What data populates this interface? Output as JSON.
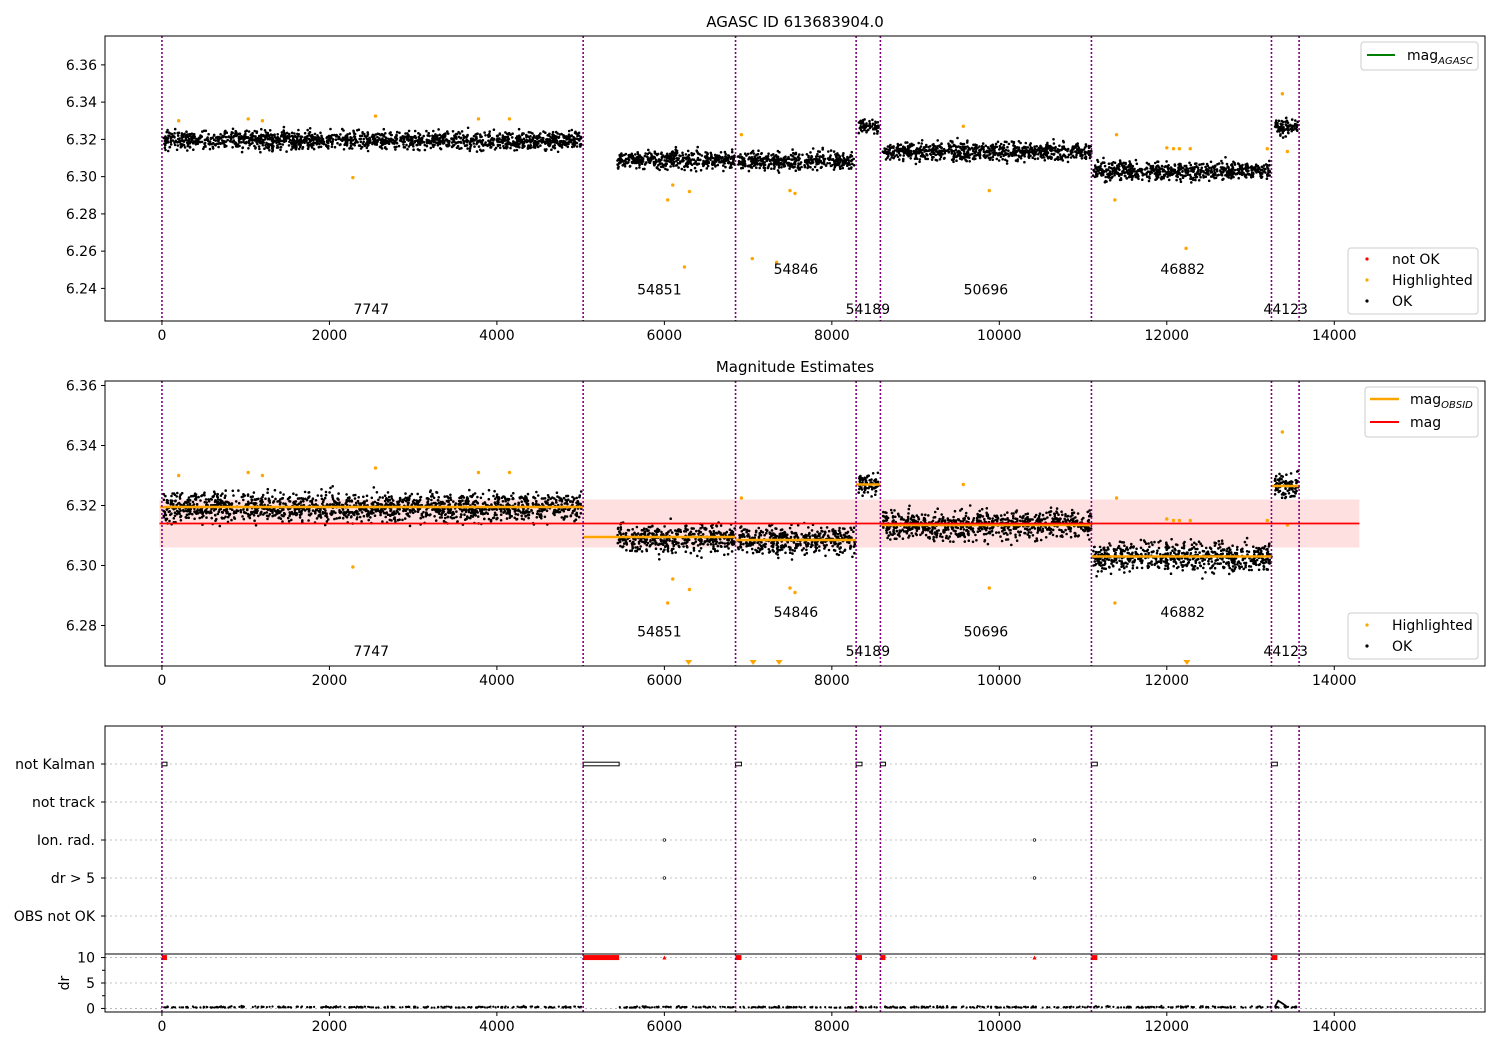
{
  "chart_data": [
    {
      "type": "scatter",
      "title": "AGASC ID 613683904.0",
      "xlim": [
        -680,
        15800
      ],
      "ylim": [
        6.2225,
        6.3755
      ],
      "xticks": [
        0,
        2000,
        4000,
        6000,
        8000,
        10000,
        12000,
        14000
      ],
      "xtick_labels": [
        "0",
        "2000",
        "4000",
        "6000",
        "8000",
        "10000",
        "12000",
        "14000"
      ],
      "yticks": [
        6.24,
        6.26,
        6.28,
        6.3,
        6.32,
        6.34,
        6.36
      ],
      "ytick_labels": [
        "6.24",
        "6.26",
        "6.28",
        "6.30",
        "6.32",
        "6.34",
        "6.36"
      ],
      "legend_top": {
        "position": "top-right",
        "entries": [
          {
            "label": "mag",
            "sub": "AGASC",
            "color": "#008000",
            "kind": "line"
          }
        ]
      },
      "legend_bottom": {
        "position": "lower-right",
        "entries": [
          {
            "label": "not OK",
            "color": "#ff0000",
            "kind": "marker"
          },
          {
            "label": "Highlighted",
            "color": "#ffa500",
            "kind": "marker"
          },
          {
            "label": "OK",
            "color": "#000000",
            "kind": "marker"
          }
        ]
      },
      "segments": [
        {
          "x0": 20,
          "x1": 5010,
          "mean": 6.3195,
          "spread": 0.0055
        },
        {
          "x0": 5440,
          "x1": 6840,
          "mean": 6.309,
          "spread": 0.0055
        },
        {
          "x0": 6880,
          "x1": 8280,
          "mean": 6.3085,
          "spread": 0.0055
        },
        {
          "x0": 8320,
          "x1": 8560,
          "mean": 6.327,
          "spread": 0.004
        },
        {
          "x0": 8610,
          "x1": 11100,
          "mean": 6.3135,
          "spread": 0.0055
        },
        {
          "x0": 11120,
          "x1": 13250,
          "mean": 6.303,
          "spread": 0.0055
        },
        {
          "x0": 13290,
          "x1": 13570,
          "mean": 6.3265,
          "spread": 0.005
        }
      ],
      "highlighted_points": [
        [
          200,
          6.33
        ],
        [
          1030,
          6.331
        ],
        [
          1200,
          6.33
        ],
        [
          2280,
          6.2995
        ],
        [
          2550,
          6.3325
        ],
        [
          3780,
          6.331
        ],
        [
          4150,
          6.331
        ],
        [
          6040,
          6.2875
        ],
        [
          6100,
          6.2955
        ],
        [
          6240,
          6.2515
        ],
        [
          6300,
          6.292
        ],
        [
          6920,
          6.3225
        ],
        [
          7050,
          6.256
        ],
        [
          7340,
          6.254
        ],
        [
          7500,
          6.2925
        ],
        [
          7560,
          6.291
        ],
        [
          9570,
          6.327
        ],
        [
          9880,
          6.2925
        ],
        [
          11380,
          6.2875
        ],
        [
          11400,
          6.3225
        ],
        [
          12000,
          6.3155
        ],
        [
          12080,
          6.315
        ],
        [
          12150,
          6.315
        ],
        [
          12230,
          6.2615
        ],
        [
          12280,
          6.315
        ],
        [
          13200,
          6.315
        ],
        [
          13380,
          6.3445
        ],
        [
          13440,
          6.3135
        ]
      ],
      "vlines": [
        0,
        5030,
        6850,
        8290,
        8580,
        11100,
        13250,
        13580
      ],
      "obsid_labels": [
        {
          "text": "7747",
          "x": 2500,
          "y": 6.229
        },
        {
          "text": "54851",
          "x": 5940,
          "y": 6.2395
        },
        {
          "text": "54846",
          "x": 7570,
          "y": 6.2505
        },
        {
          "text": "54189",
          "x": 8430,
          "y": 6.229
        },
        {
          "text": "50696",
          "x": 9840,
          "y": 6.2395
        },
        {
          "text": "46882",
          "x": 12190,
          "y": 6.2505
        },
        {
          "text": "44123",
          "x": 13420,
          "y": 6.229
        }
      ]
    },
    {
      "type": "scatter",
      "title": "Magnitude Estimates",
      "xlim": [
        -680,
        15800
      ],
      "ylim": [
        6.2665,
        6.3615
      ],
      "xticks": [
        0,
        2000,
        4000,
        6000,
        8000,
        10000,
        12000,
        14000
      ],
      "xtick_labels": [
        "0",
        "2000",
        "4000",
        "6000",
        "8000",
        "10000",
        "12000",
        "14000"
      ],
      "yticks": [
        6.28,
        6.3,
        6.32,
        6.34,
        6.36
      ],
      "ytick_labels": [
        "6.28",
        "6.30",
        "6.32",
        "6.34",
        "6.36"
      ],
      "legend_top": {
        "position": "top-right",
        "entries": [
          {
            "label": "mag",
            "sub": "OBSID",
            "color": "#ffa500",
            "kind": "line"
          },
          {
            "label": "mag",
            "sub": "",
            "color": "#ff0000",
            "kind": "line"
          }
        ]
      },
      "legend_bottom": {
        "position": "lower-right",
        "entries": [
          {
            "label": "Highlighted",
            "color": "#ffa500",
            "kind": "marker"
          },
          {
            "label": "OK",
            "color": "#000000",
            "kind": "marker"
          }
        ]
      },
      "mag": 6.314,
      "mag_band": [
        6.306,
        6.322
      ],
      "mag_band_x": [
        -30,
        14300
      ],
      "obsid_mags": [
        {
          "x0": -20,
          "x1": 5030,
          "mag": 6.3195
        },
        {
          "x0": 5030,
          "x1": 6850,
          "mag": 6.3095
        },
        {
          "x0": 6850,
          "x1": 8290,
          "mag": 6.3085
        },
        {
          "x0": 8290,
          "x1": 8580,
          "mag": 6.327
        },
        {
          "x0": 8580,
          "x1": 11100,
          "mag": 6.3135
        },
        {
          "x0": 11100,
          "x1": 13250,
          "mag": 6.303
        },
        {
          "x0": 13250,
          "x1": 13580,
          "mag": 6.3265
        }
      ],
      "offscale_markers": [
        6290,
        7060,
        7370,
        12240
      ],
      "segments": [
        {
          "x0": 20,
          "x1": 5010,
          "mean": 6.3195,
          "spread": 0.0055
        },
        {
          "x0": 5440,
          "x1": 6840,
          "mean": 6.309,
          "spread": 0.0055
        },
        {
          "x0": 6880,
          "x1": 8280,
          "mean": 6.3085,
          "spread": 0.0055
        },
        {
          "x0": 8320,
          "x1": 8560,
          "mean": 6.327,
          "spread": 0.004
        },
        {
          "x0": 8610,
          "x1": 11100,
          "mean": 6.3135,
          "spread": 0.0055
        },
        {
          "x0": 11120,
          "x1": 13250,
          "mean": 6.303,
          "spread": 0.0055
        },
        {
          "x0": 13290,
          "x1": 13570,
          "mean": 6.3265,
          "spread": 0.005
        }
      ],
      "highlighted_points": [
        [
          200,
          6.33
        ],
        [
          1030,
          6.331
        ],
        [
          1200,
          6.33
        ],
        [
          2280,
          6.2995
        ],
        [
          2550,
          6.3325
        ],
        [
          3780,
          6.331
        ],
        [
          4150,
          6.331
        ],
        [
          6040,
          6.2875
        ],
        [
          6100,
          6.2955
        ],
        [
          6300,
          6.292
        ],
        [
          6920,
          6.3225
        ],
        [
          7500,
          6.2925
        ],
        [
          7560,
          6.291
        ],
        [
          9570,
          6.327
        ],
        [
          9880,
          6.2925
        ],
        [
          11380,
          6.2875
        ],
        [
          11400,
          6.3225
        ],
        [
          12000,
          6.3155
        ],
        [
          12080,
          6.315
        ],
        [
          12150,
          6.315
        ],
        [
          12280,
          6.315
        ],
        [
          13200,
          6.315
        ],
        [
          13380,
          6.3445
        ],
        [
          13440,
          6.3135
        ]
      ],
      "vlines": [
        0,
        5030,
        6850,
        8290,
        8580,
        11100,
        13250,
        13580
      ],
      "obsid_labels": [
        {
          "text": "7747",
          "x": 2500,
          "y": 6.2715
        },
        {
          "text": "54851",
          "x": 5940,
          "y": 6.278
        },
        {
          "text": "54846",
          "x": 7570,
          "y": 6.2845
        },
        {
          "text": "54189",
          "x": 8430,
          "y": 6.2715
        },
        {
          "text": "50696",
          "x": 9840,
          "y": 6.278
        },
        {
          "text": "46882",
          "x": 12190,
          "y": 6.2845
        },
        {
          "text": "44123",
          "x": 13420,
          "y": 6.2715
        }
      ]
    },
    {
      "type": "scatter",
      "title": "",
      "xlim": [
        -680,
        15800
      ],
      "xticks": [
        0,
        2000,
        4000,
        6000,
        8000,
        10000,
        12000,
        14000
      ],
      "xtick_labels": [
        "0",
        "2000",
        "4000",
        "6000",
        "8000",
        "10000",
        "12000",
        "14000"
      ],
      "flag_rows": [
        "not Kalman",
        "not track",
        "Ion. rad.",
        "dr > 5",
        "OBS not OK"
      ],
      "flag_events": {
        "not Kalman": [
          [
            0,
            60
          ],
          [
            5030,
            5460
          ],
          [
            6850,
            6920
          ],
          [
            8290,
            8360
          ],
          [
            8580,
            8640
          ],
          [
            11100,
            11170
          ],
          [
            13250,
            13320
          ]
        ],
        "Ion. rad.": [
          [
            6000,
            6000
          ],
          [
            10420,
            10420
          ]
        ],
        "dr > 5": [
          [
            6000,
            6000
          ],
          [
            10420,
            10420
          ]
        ]
      },
      "dr": {
        "ylim": [
          -0.7,
          10.7
        ],
        "yticks": [
          0,
          5,
          10
        ],
        "ytick_labels": [
          "0",
          "5",
          "10"
        ],
        "ylabel": "dr",
        "high_events": [
          [
            0,
            60
          ],
          [
            5030,
            5460
          ],
          [
            6000,
            6000
          ],
          [
            6850,
            6920
          ],
          [
            8290,
            8360
          ],
          [
            8580,
            8640
          ],
          [
            10420,
            10420
          ],
          [
            11100,
            11170
          ],
          [
            13250,
            13320
          ]
        ],
        "low_segments": [
          [
            20,
            5010
          ],
          [
            5440,
            6840
          ],
          [
            6880,
            8280
          ],
          [
            8320,
            8560
          ],
          [
            8610,
            11100
          ],
          [
            11120,
            13250
          ],
          [
            13290,
            13570
          ]
        ]
      },
      "vlines": [
        0,
        5030,
        6850,
        8290,
        8580,
        11100,
        13250,
        13580
      ]
    }
  ]
}
